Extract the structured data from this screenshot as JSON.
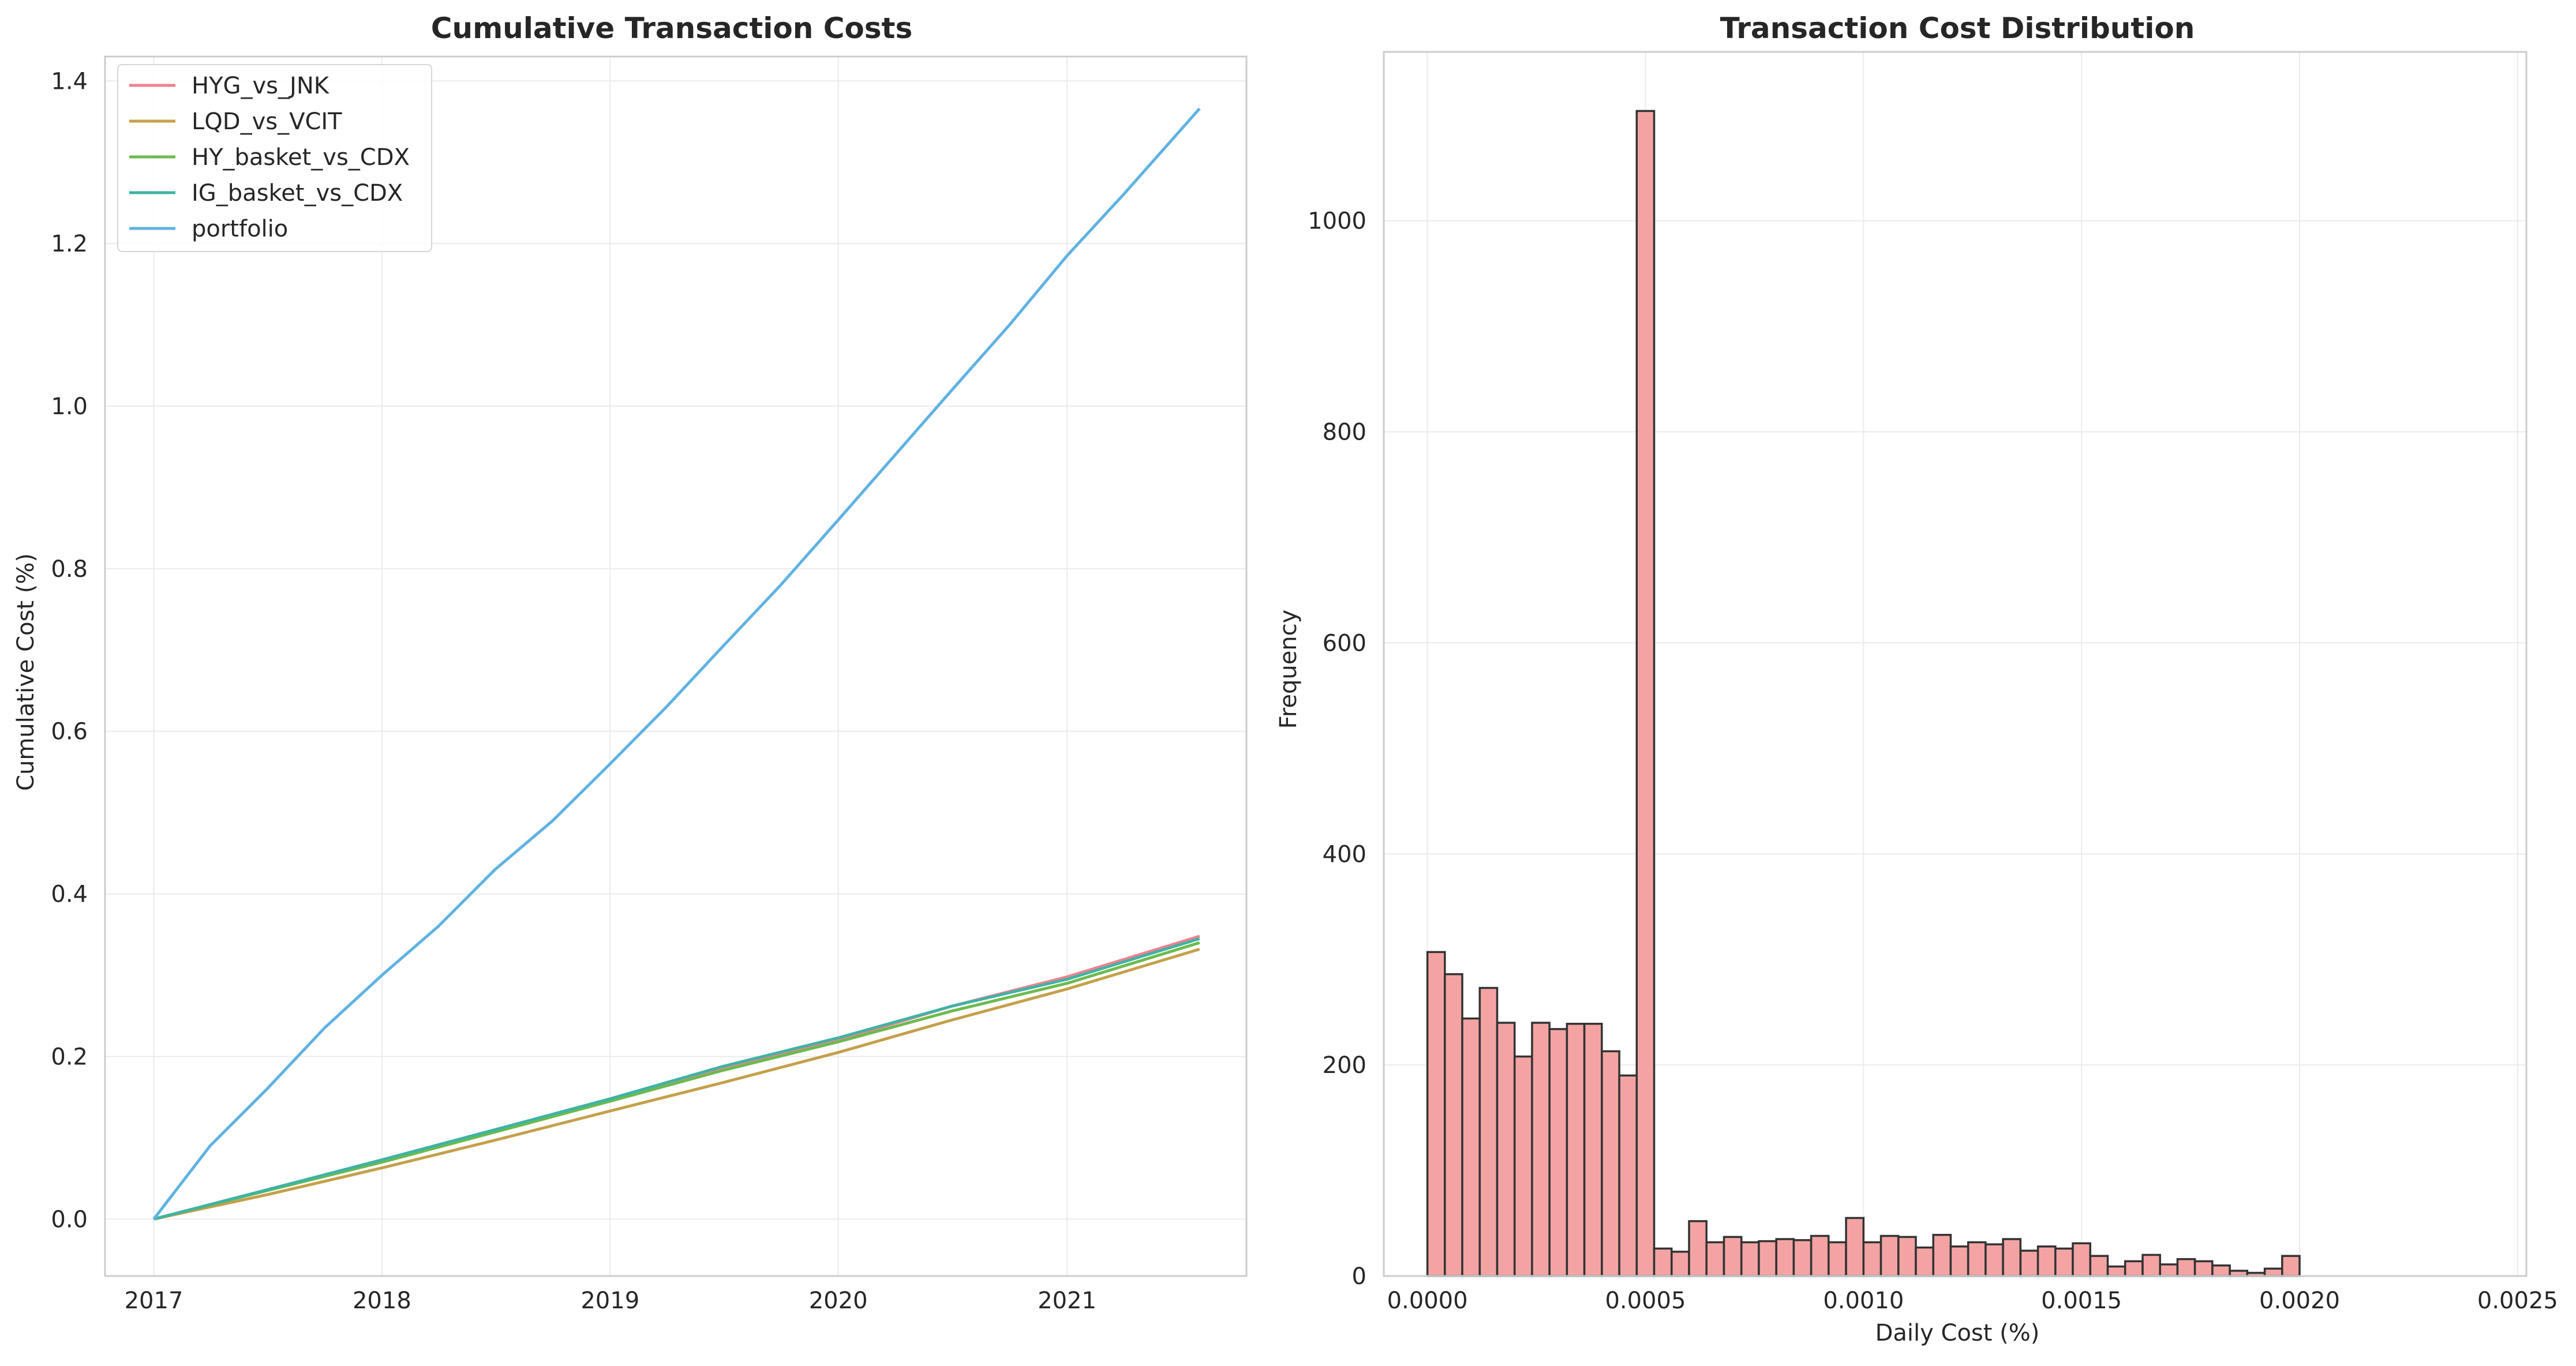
{
  "colors": {
    "background": "#ffffff",
    "grid": "#ebebeb",
    "spine": "#cccccc",
    "hist_fill": "#f4a3a3",
    "hist_edge": "#333333"
  },
  "chart_data": [
    {
      "type": "line",
      "title": "Cumulative Transaction Costs",
      "xlabel": "",
      "ylabel": "Cumulative Cost (%)",
      "x_ticks": [
        "2017",
        "2018",
        "2019",
        "2020",
        "2021"
      ],
      "y_ticks": [
        "0.0",
        "0.2",
        "0.4",
        "0.6",
        "0.8",
        "1.0",
        "1.2",
        "1.4"
      ],
      "xlim": [
        "2016-10-15",
        "2021-10-15"
      ],
      "ylim": [
        -0.07,
        1.43
      ],
      "grid": true,
      "legend": "top-left",
      "series": [
        {
          "name": "HYG_vs_JNK",
          "color": "#f0808f",
          "points": [
            [
              "2017-01-01",
              0.0
            ],
            [
              "2017-07-01",
              0.036
            ],
            [
              "2018-01-01",
              0.072
            ],
            [
              "2018-07-01",
              0.108
            ],
            [
              "2019-01-01",
              0.145
            ],
            [
              "2019-07-01",
              0.185
            ],
            [
              "2020-01-01",
              0.22
            ],
            [
              "2020-07-01",
              0.262
            ],
            [
              "2021-01-01",
              0.298
            ],
            [
              "2021-08-01",
              0.348
            ]
          ]
        },
        {
          "name": "LQD_vs_VCIT",
          "color": "#c4a04a",
          "points": [
            [
              "2017-01-01",
              0.0
            ],
            [
              "2017-07-01",
              0.03
            ],
            [
              "2018-01-01",
              0.063
            ],
            [
              "2018-07-01",
              0.097
            ],
            [
              "2019-01-01",
              0.133
            ],
            [
              "2019-07-01",
              0.168
            ],
            [
              "2020-01-01",
              0.205
            ],
            [
              "2020-07-01",
              0.245
            ],
            [
              "2021-01-01",
              0.283
            ],
            [
              "2021-08-01",
              0.332
            ]
          ]
        },
        {
          "name": "HY_basket_vs_CDX",
          "color": "#6cba4e",
          "points": [
            [
              "2017-01-01",
              0.0
            ],
            [
              "2017-07-01",
              0.035
            ],
            [
              "2018-01-01",
              0.07
            ],
            [
              "2018-07-01",
              0.107
            ],
            [
              "2019-01-01",
              0.145
            ],
            [
              "2019-07-01",
              0.183
            ],
            [
              "2020-01-01",
              0.218
            ],
            [
              "2020-07-01",
              0.256
            ],
            [
              "2021-01-01",
              0.29
            ],
            [
              "2021-08-01",
              0.34
            ]
          ]
        },
        {
          "name": "IG_basket_vs_CDX",
          "color": "#3fb3a4",
          "points": [
            [
              "2017-01-01",
              0.0
            ],
            [
              "2017-07-01",
              0.036
            ],
            [
              "2018-01-01",
              0.073
            ],
            [
              "2018-07-01",
              0.11
            ],
            [
              "2019-01-01",
              0.148
            ],
            [
              "2019-07-01",
              0.188
            ],
            [
              "2020-01-01",
              0.223
            ],
            [
              "2020-07-01",
              0.262
            ],
            [
              "2021-01-01",
              0.295
            ],
            [
              "2021-08-01",
              0.345
            ]
          ]
        },
        {
          "name": "portfolio",
          "color": "#5fb2e2",
          "points": [
            [
              "2017-01-01",
              0.0
            ],
            [
              "2017-04-01",
              0.09
            ],
            [
              "2017-07-01",
              0.16
            ],
            [
              "2017-10-01",
              0.235
            ],
            [
              "2018-01-01",
              0.3
            ],
            [
              "2018-04-01",
              0.36
            ],
            [
              "2018-07-01",
              0.43
            ],
            [
              "2018-10-01",
              0.49
            ],
            [
              "2019-01-01",
              0.56
            ],
            [
              "2019-04-01",
              0.63
            ],
            [
              "2019-07-01",
              0.705
            ],
            [
              "2019-10-01",
              0.78
            ],
            [
              "2020-01-01",
              0.86
            ],
            [
              "2020-04-01",
              0.94
            ],
            [
              "2020-07-01",
              1.02
            ],
            [
              "2020-10-01",
              1.1
            ],
            [
              "2021-01-01",
              1.185
            ],
            [
              "2021-04-01",
              1.26
            ],
            [
              "2021-08-01",
              1.366
            ]
          ]
        }
      ]
    },
    {
      "type": "bar",
      "subtype": "histogram",
      "title": "Transaction Cost Distribution",
      "xlabel": "Daily Cost (%)",
      "ylabel": "Frequency",
      "x_ticks": [
        "0.0000",
        "0.0005",
        "0.0010",
        "0.0015",
        "0.0020",
        "0.0025"
      ],
      "y_ticks": [
        "0",
        "200",
        "400",
        "600",
        "800",
        "1000"
      ],
      "xlim": [
        -0.0001,
        0.00252
      ],
      "ylim": [
        0,
        1160
      ],
      "grid": true,
      "bin_start": 0.0,
      "bin_width": 4e-05,
      "counts": [
        307,
        286,
        244,
        273,
        240,
        208,
        240,
        234,
        239,
        239,
        213,
        190,
        1104,
        26,
        23,
        52,
        32,
        37,
        32,
        33,
        35,
        34,
        38,
        32,
        55,
        32,
        38,
        37,
        27,
        39,
        28,
        32,
        30,
        35,
        24,
        28,
        26,
        31,
        19,
        9,
        14,
        20,
        11,
        16,
        14,
        10,
        5,
        3,
        7,
        19
      ]
    }
  ]
}
